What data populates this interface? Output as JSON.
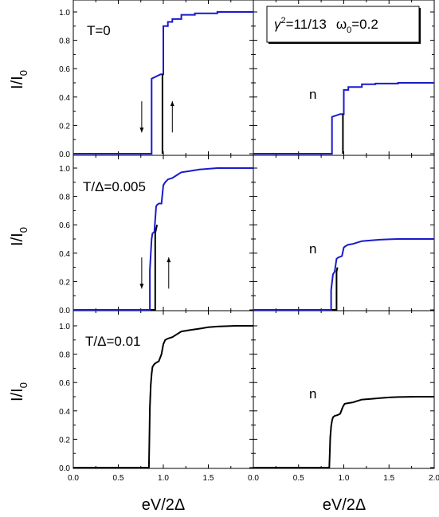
{
  "figure": {
    "x_axis_title": "eV/2Δ",
    "y_axis_title_main": "I/I",
    "y_axis_title_sub": "0",
    "legend_box": {
      "gamma": "γ",
      "gamma_sup": "2",
      "gamma_value": "=11/13",
      "omega": "ω",
      "omega_sub": "0",
      "omega_value": "=0.2"
    },
    "x_tick_labels_left": [
      "0.0",
      "0.5",
      "1.0",
      "1.5"
    ],
    "x_tick_labels_right": [
      "0.0",
      "0.5",
      "1.0",
      "1.5",
      "2.0"
    ],
    "y_tick_labels": [
      "0.0",
      "0.2",
      "0.4",
      "0.6",
      "0.8",
      "1.0"
    ]
  },
  "chart_data": [
    {
      "type": "line",
      "panel": "row1-left",
      "label": "T=0",
      "xlim": [
        0,
        2
      ],
      "ylim": [
        0,
        1.02
      ],
      "series": [
        {
          "color": "#1a1acc",
          "x": [
            0,
            0.87,
            0.87,
            0.97,
            0.97,
            1.0,
            1.0,
            1.05,
            1.05,
            1.1,
            1.1,
            1.2,
            1.2,
            1.35,
            1.35,
            1.6,
            1.6,
            2.0
          ],
          "y": [
            0,
            0,
            0.53,
            0.56,
            0.56,
            0.56,
            0.9,
            0.9,
            0.93,
            0.93,
            0.95,
            0.95,
            0.98,
            0.98,
            0.99,
            0.99,
            1.0,
            1.0
          ]
        },
        {
          "color": "#000000",
          "x": [
            0.99,
            0.99
          ],
          "y": [
            0,
            0.56
          ]
        }
      ],
      "arrows": [
        {
          "direction": "down",
          "x": 0.76,
          "y_from": 0.37,
          "y_to": 0.15
        },
        {
          "direction": "up",
          "x": 1.1,
          "y_from": 0.15,
          "y_to": 0.37
        }
      ]
    },
    {
      "type": "line",
      "panel": "row1-right",
      "label": "n",
      "xlim": [
        0,
        2
      ],
      "ylim": [
        0,
        1.02
      ],
      "series": [
        {
          "color": "#1a1acc",
          "x": [
            0,
            0.87,
            0.87,
            0.96,
            0.96,
            1.0,
            1.0,
            1.05,
            1.05,
            1.2,
            1.2,
            1.35,
            1.35,
            1.6,
            1.6,
            2.0
          ],
          "y": [
            0,
            0,
            0.26,
            0.28,
            0.28,
            0.28,
            0.45,
            0.45,
            0.47,
            0.47,
            0.49,
            0.49,
            0.495,
            0.495,
            0.5,
            0.5
          ]
        },
        {
          "color": "#000000",
          "x": [
            0.99,
            0.99
          ],
          "y": [
            0,
            0.28
          ]
        }
      ]
    },
    {
      "type": "line",
      "panel": "row2-left",
      "label": "T/Δ=0.005",
      "xlim": [
        0,
        2
      ],
      "ylim": [
        0,
        1.02
      ],
      "series": [
        {
          "color": "#000000",
          "x": [
            0,
            0.91,
            0.91,
            0.93,
            0.93
          ],
          "y": [
            0,
            0,
            0.54,
            0.6,
            0.6
          ]
        },
        {
          "color": "#1a1acc",
          "x": [
            0,
            0.85,
            0.85,
            0.87,
            0.88,
            0.9,
            0.92,
            0.93,
            0.95,
            0.98,
            1.0,
            1.02,
            1.05,
            1.1,
            1.15,
            1.2,
            1.3,
            1.4,
            1.5,
            1.6,
            2.0
          ],
          "y": [
            0,
            0,
            0.28,
            0.5,
            0.54,
            0.55,
            0.73,
            0.74,
            0.75,
            0.75,
            0.88,
            0.9,
            0.92,
            0.93,
            0.95,
            0.97,
            0.98,
            0.99,
            0.995,
            1.0,
            1.0
          ]
        }
      ],
      "arrows": [
        {
          "direction": "down",
          "x": 0.76,
          "y_from": 0.37,
          "y_to": 0.15
        },
        {
          "direction": "up",
          "x": 1.06,
          "y_from": 0.15,
          "y_to": 0.37
        }
      ]
    },
    {
      "type": "line",
      "panel": "row2-right",
      "label": "n",
      "xlim": [
        0,
        2
      ],
      "ylim": [
        0,
        1.02
      ],
      "series": [
        {
          "color": "#000000",
          "x": [
            0,
            0.92,
            0.92,
            0.93,
            0.93
          ],
          "y": [
            0,
            0,
            0.27,
            0.3,
            0.3
          ]
        },
        {
          "color": "#1a1acc",
          "x": [
            0,
            0.86,
            0.86,
            0.88,
            0.9,
            0.92,
            0.94,
            0.96,
            0.98,
            1.0,
            1.02,
            1.05,
            1.1,
            1.15,
            1.2,
            1.3,
            1.4,
            1.5,
            1.6,
            2.0
          ],
          "y": [
            0,
            0,
            0.14,
            0.25,
            0.27,
            0.36,
            0.37,
            0.375,
            0.38,
            0.44,
            0.45,
            0.46,
            0.465,
            0.475,
            0.485,
            0.49,
            0.495,
            0.498,
            0.5,
            0.5
          ]
        }
      ]
    },
    {
      "type": "line",
      "panel": "row3-left",
      "label": "T/Δ=0.01",
      "xlim": [
        0,
        2
      ],
      "ylim": [
        0,
        1.02
      ],
      "series": [
        {
          "color": "#000000",
          "x": [
            0,
            0.84,
            0.845,
            0.85,
            0.86,
            0.87,
            0.88,
            0.9,
            0.92,
            0.95,
            0.98,
            1.0,
            1.02,
            1.05,
            1.1,
            1.15,
            1.2,
            1.3,
            1.4,
            1.5,
            1.6,
            1.8,
            2.0
          ],
          "y": [
            0,
            0,
            0.2,
            0.42,
            0.58,
            0.66,
            0.71,
            0.73,
            0.74,
            0.75,
            0.8,
            0.87,
            0.9,
            0.91,
            0.92,
            0.94,
            0.96,
            0.97,
            0.98,
            0.99,
            0.995,
            1.0,
            1.0
          ]
        }
      ]
    },
    {
      "type": "line",
      "panel": "row3-right",
      "label": "n",
      "xlim": [
        0,
        2
      ],
      "ylim": [
        0,
        1.02
      ],
      "series": [
        {
          "color": "#000000",
          "x": [
            0,
            0.84,
            0.845,
            0.85,
            0.86,
            0.87,
            0.88,
            0.9,
            0.93,
            0.96,
            0.99,
            1.01,
            1.05,
            1.1,
            1.15,
            1.2,
            1.3,
            1.4,
            1.5,
            1.6,
            1.8,
            2.0
          ],
          "y": [
            0,
            0,
            0.1,
            0.21,
            0.29,
            0.33,
            0.355,
            0.365,
            0.37,
            0.38,
            0.43,
            0.45,
            0.455,
            0.46,
            0.47,
            0.48,
            0.485,
            0.49,
            0.495,
            0.498,
            0.5,
            0.5
          ]
        }
      ]
    }
  ]
}
